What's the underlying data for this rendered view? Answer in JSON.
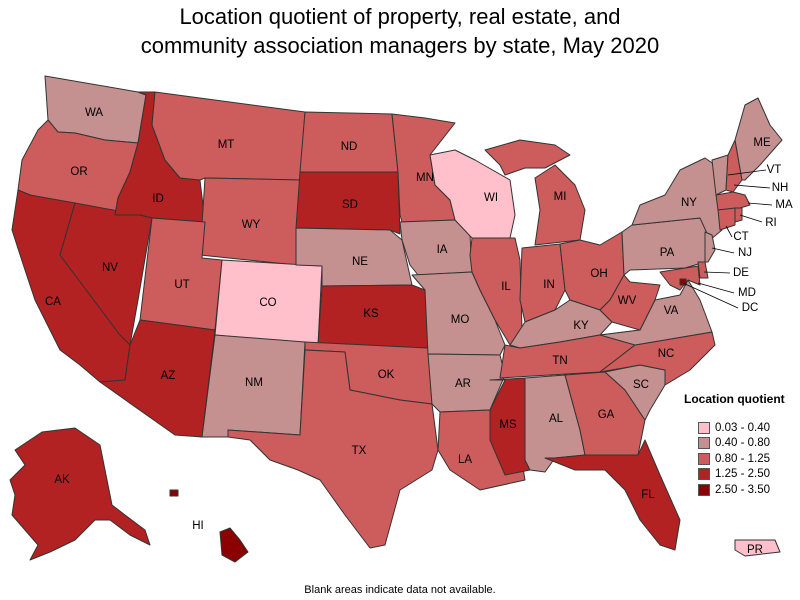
{
  "title_line1": "Location quotient of property, real estate, and",
  "title_line2": "community association managers by state, May 2020",
  "legend": {
    "title": "Location quotient",
    "items": [
      {
        "label": "0.03 - 0.40",
        "color": "#ffc0cb"
      },
      {
        "label": "0.40 - 0.80",
        "color": "#c49090"
      },
      {
        "label": "0.80 - 1.25",
        "color": "#cd5c5c"
      },
      {
        "label": "1.25 - 2.50",
        "color": "#b22222"
      },
      {
        "label": "2.50 - 3.50",
        "color": "#8b0000"
      }
    ]
  },
  "footnote": "Blank areas indicate data not available.",
  "states": [
    {
      "abbr": "WA",
      "bin": 1
    },
    {
      "abbr": "OR",
      "bin": 2
    },
    {
      "abbr": "CA",
      "bin": 3
    },
    {
      "abbr": "ID",
      "bin": 3
    },
    {
      "abbr": "NV",
      "bin": 3
    },
    {
      "abbr": "MT",
      "bin": 2
    },
    {
      "abbr": "WY",
      "bin": 2
    },
    {
      "abbr": "UT",
      "bin": 2
    },
    {
      "abbr": "AZ",
      "bin": 3
    },
    {
      "abbr": "CO",
      "bin": 0
    },
    {
      "abbr": "NM",
      "bin": 1
    },
    {
      "abbr": "ND",
      "bin": 2
    },
    {
      "abbr": "SD",
      "bin": 3
    },
    {
      "abbr": "NE",
      "bin": 1
    },
    {
      "abbr": "KS",
      "bin": 3
    },
    {
      "abbr": "OK",
      "bin": 2
    },
    {
      "abbr": "TX",
      "bin": 2
    },
    {
      "abbr": "MN",
      "bin": 2
    },
    {
      "abbr": "IA",
      "bin": 1
    },
    {
      "abbr": "MO",
      "bin": 1
    },
    {
      "abbr": "AR",
      "bin": 1
    },
    {
      "abbr": "LA",
      "bin": 2
    },
    {
      "abbr": "WI",
      "bin": 0
    },
    {
      "abbr": "IL",
      "bin": 2
    },
    {
      "abbr": "MI",
      "bin": 2
    },
    {
      "abbr": "IN",
      "bin": 2
    },
    {
      "abbr": "OH",
      "bin": 2
    },
    {
      "abbr": "KY",
      "bin": 1
    },
    {
      "abbr": "TN",
      "bin": 2
    },
    {
      "abbr": "MS",
      "bin": 3
    },
    {
      "abbr": "AL",
      "bin": 1
    },
    {
      "abbr": "GA",
      "bin": 2
    },
    {
      "abbr": "FL",
      "bin": 3
    },
    {
      "abbr": "SC",
      "bin": 1
    },
    {
      "abbr": "NC",
      "bin": 2
    },
    {
      "abbr": "VA",
      "bin": 1
    },
    {
      "abbr": "WV",
      "bin": 2
    },
    {
      "abbr": "PA",
      "bin": 1
    },
    {
      "abbr": "NY",
      "bin": 1
    },
    {
      "abbr": "VT",
      "bin": 1
    },
    {
      "abbr": "NH",
      "bin": 2
    },
    {
      "abbr": "ME",
      "bin": 1
    },
    {
      "abbr": "MA",
      "bin": 2
    },
    {
      "abbr": "RI",
      "bin": 2
    },
    {
      "abbr": "CT",
      "bin": 2
    },
    {
      "abbr": "NJ",
      "bin": 1
    },
    {
      "abbr": "DE",
      "bin": 2
    },
    {
      "abbr": "MD",
      "bin": 2
    },
    {
      "abbr": "DC",
      "bin": 4
    },
    {
      "abbr": "AK",
      "bin": 3
    },
    {
      "abbr": "HI",
      "bin": 4
    },
    {
      "abbr": "PR",
      "bin": 0
    }
  ]
}
